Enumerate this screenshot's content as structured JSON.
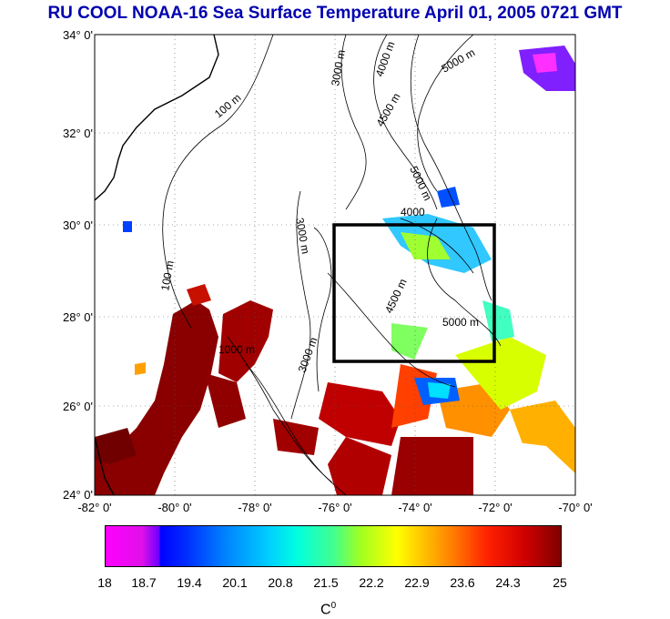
{
  "title": "RU COOL  NOAA-16 Sea Surface Temperature April 01, 2005 0721 GMT",
  "lat_labels": [
    "34° 0'",
    "32° 0'",
    "30° 0'",
    "28° 0'",
    "26° 0'",
    "24° 0'"
  ],
  "lon_labels": [
    "-82° 0'",
    "-80° 0'",
    "-78° 0'",
    "-76° 0'",
    "-74° 0'",
    "-72° 0'",
    "-70° 0'"
  ],
  "contours": {
    "c100a": "100 m",
    "c100b": "100 m",
    "c3000a": "3000 m",
    "c3000b": "3000 m",
    "c3000c": "3000 m",
    "c4000a": "4000 m",
    "c4000b": "4000",
    "c4500a": "4500 m",
    "c4500b": "4500 m",
    "c5000a": "5000 m",
    "c5000b": "5000 m",
    "c5000c": "5000 m",
    "c1000": "1000 m"
  },
  "colorbar": {
    "ticks": [
      "18",
      "18.7",
      "19.4",
      "20.1",
      "20.8",
      "21.5",
      "22.2",
      "22.9",
      "23.6",
      "24.3",
      "25"
    ],
    "unit": "C",
    "unit_sup": "0",
    "colors": {
      "min": "#ff00ff",
      "low": "#0000ff",
      "mid": "#ffff00",
      "max": "#800000"
    }
  }
}
